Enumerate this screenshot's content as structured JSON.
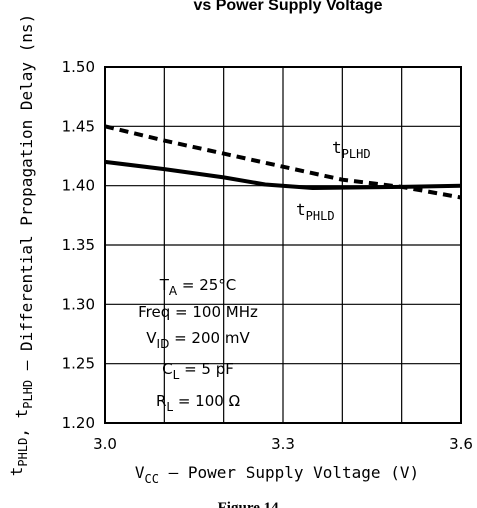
{
  "chart_data": {
    "type": "line",
    "title": "vs Power Supply Voltage",
    "xlabel_main": "V",
    "xlabel_sub": "CC",
    "xlabel_rest": " – Power Supply Voltage (V)",
    "ylabel_parts": [
      {
        "t": "t",
        "sub": "PHLD"
      },
      {
        "t": ", t",
        "sub": "PLHD"
      },
      {
        "t": " – Differential Propagation Delay (ns)",
        "sub": ""
      }
    ],
    "xlim": [
      3.0,
      3.6
    ],
    "ylim": [
      1.2,
      1.5
    ],
    "x_ticks": [
      {
        "value": 3.0,
        "label": "3.0"
      },
      {
        "value": 3.3,
        "label": "3.3"
      },
      {
        "value": 3.6,
        "label": "3.6"
      }
    ],
    "y_ticks": [
      {
        "value": 1.5,
        "label": "1.50"
      },
      {
        "value": 1.45,
        "label": "1.45"
      },
      {
        "value": 1.4,
        "label": "1.40"
      },
      {
        "value": 1.35,
        "label": "1.35"
      },
      {
        "value": 1.3,
        "label": "1.30"
      },
      {
        "value": 1.25,
        "label": "1.25"
      },
      {
        "value": 1.2,
        "label": "1.20"
      }
    ],
    "grid": true,
    "series": [
      {
        "name": "tPLHD",
        "style": "dashed",
        "color": "#000000",
        "label_main": "t",
        "label_sub": "PLHD",
        "points": [
          [
            3.0,
            1.45
          ],
          [
            3.1,
            1.438
          ],
          [
            3.2,
            1.427
          ],
          [
            3.3,
            1.416
          ],
          [
            3.4,
            1.405
          ],
          [
            3.5,
            1.399
          ],
          [
            3.6,
            1.39
          ]
        ]
      },
      {
        "name": "tPHLD",
        "style": "solid",
        "color": "#000000",
        "label_main": "t",
        "label_sub": "PHLD",
        "points": [
          [
            3.0,
            1.42
          ],
          [
            3.1,
            1.414
          ],
          [
            3.2,
            1.407
          ],
          [
            3.27,
            1.401
          ],
          [
            3.35,
            1.398
          ],
          [
            3.5,
            1.399
          ],
          [
            3.6,
            1.4
          ]
        ]
      }
    ],
    "conditions": [
      {
        "main": "T",
        "sub": "A",
        "rest": " = 25°C"
      },
      {
        "main": "Freq = 100 MHz",
        "sub": "",
        "rest": ""
      },
      {
        "main": "V",
        "sub": "ID",
        "rest": " = 200 mV"
      },
      {
        "main": "C",
        "sub": "L",
        "rest": " = 5 pF"
      },
      {
        "main": "R",
        "sub": "L",
        "rest": " = 100 Ω"
      }
    ],
    "figure_label": "Figure 14."
  }
}
